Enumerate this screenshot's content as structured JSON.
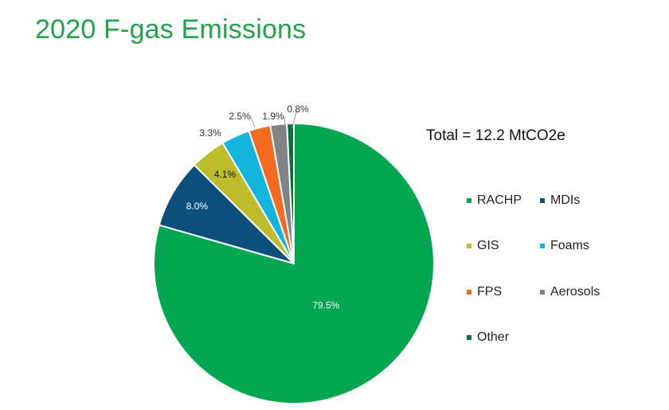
{
  "title": "2020 F-gas Emissions",
  "total_label": "Total = 12.2 MtCO2e",
  "chart_data": {
    "type": "pie",
    "title": "2020 F-gas Emissions",
    "total": "Total = 12.2 MtCO2e",
    "start_angle_deg": 0,
    "direction": "clockwise",
    "legend_position": "right",
    "slices": [
      {
        "label": "RACHP",
        "value": 79.5,
        "display": "79.5%",
        "color": "#00a650"
      },
      {
        "label": "MDIs",
        "value": 8.0,
        "display": "8.0%",
        "color": "#0b4f7c"
      },
      {
        "label": "GIS",
        "value": 4.1,
        "display": "4.1%",
        "color": "#bdbd2b"
      },
      {
        "label": "Foams",
        "value": 3.3,
        "display": "3.3%",
        "color": "#13b5dd"
      },
      {
        "label": "FPS",
        "value": 2.5,
        "display": "2.5%",
        "color": "#f26b21"
      },
      {
        "label": "Aerosols",
        "value": 1.9,
        "display": "1.9%",
        "color": "#808285"
      },
      {
        "label": "Other",
        "value": 0.8,
        "display": "0.8%",
        "color": "#00703c"
      }
    ]
  }
}
